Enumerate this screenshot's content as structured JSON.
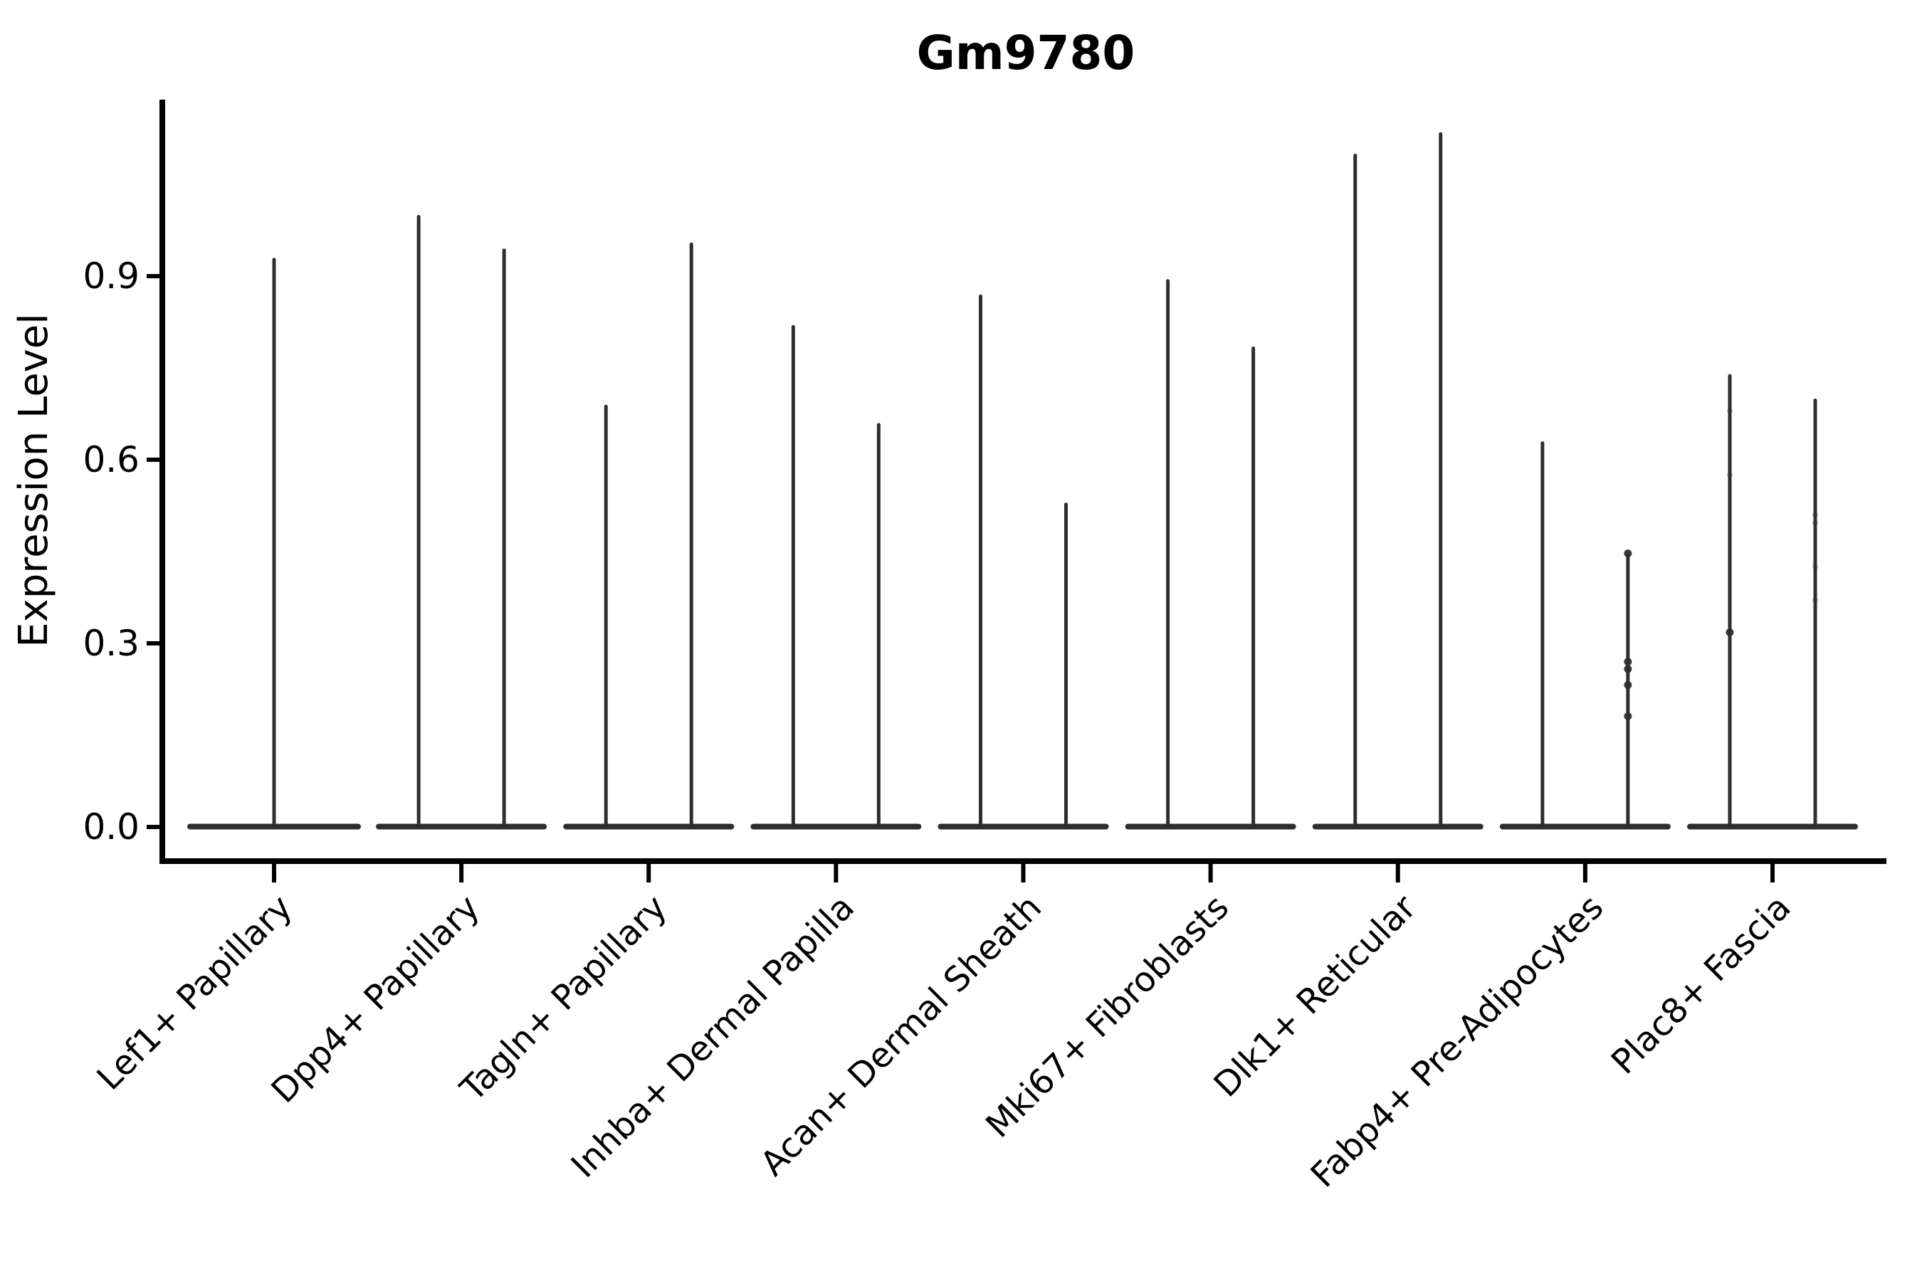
{
  "title": "Gm9780",
  "chart_data": {
    "type": "violin",
    "title": "Gm9780",
    "xlabel": "",
    "ylabel": "Expression Level",
    "ytick_labels": [
      "0.0",
      "0.3",
      "0.6",
      "0.9"
    ],
    "ytick_values": [
      0.0,
      0.3,
      0.6,
      0.9
    ],
    "ylim": [
      -0.056,
      1.19
    ],
    "grid": false,
    "legend": "none",
    "violin_color": "#2e2e2e",
    "axis_color": "#000000",
    "description": "Split violin plot of single-cell expression; each violin collapses to a thin spike from a wide base at 0, spike top = maximum expression in that group.",
    "categories": [
      "Lef1+ Papillary",
      "Dpp4+ Papillary",
      "Tagln+ Papillary",
      "Inhba+ Dermal Papilla",
      "Acan+ Dermal Sheath",
      "Mki67+ Fibroblasts",
      "Dlk1+ Reticular",
      "Fabp4+ Pre-Adipocytes",
      "Plac8+ Fascia"
    ],
    "series": [
      {
        "category": "Lef1+ Papillary",
        "violin_max": [
          0.93
        ]
      },
      {
        "category": "Dpp4+ Papillary",
        "violin_max": [
          1.0,
          0.945
        ]
      },
      {
        "category": "Tagln+ Papillary",
        "violin_max": [
          0.69,
          0.955
        ]
      },
      {
        "category": "Inhba+ Dermal Papilla",
        "violin_max": [
          0.82,
          0.66
        ]
      },
      {
        "category": "Acan+ Dermal Sheath",
        "violin_max": [
          0.87,
          0.53
        ]
      },
      {
        "category": "Mki67+ Fibroblasts",
        "violin_max": [
          0.895,
          0.785
        ]
      },
      {
        "category": "Dlk1+ Reticular",
        "violin_max": [
          1.1,
          1.135
        ]
      },
      {
        "category": "Fabp4+ Pre-Adipocytes",
        "violin_max": [
          0.63,
          0.447
        ]
      },
      {
        "category": "Plac8+ Fascia",
        "violin_max": [
          0.74,
          0.7
        ]
      }
    ],
    "points": [
      {
        "category": 7,
        "violin": 1,
        "value": 0.447,
        "faint": false
      },
      {
        "category": 7,
        "violin": 1,
        "value": 0.27,
        "faint": false
      },
      {
        "category": 7,
        "violin": 1,
        "value": 0.258,
        "faint": false
      },
      {
        "category": 7,
        "violin": 1,
        "value": 0.232,
        "faint": false
      },
      {
        "category": 7,
        "violin": 1,
        "value": 0.181,
        "faint": false
      },
      {
        "category": 8,
        "violin": 0,
        "value": 0.68,
        "faint": true
      },
      {
        "category": 8,
        "violin": 0,
        "value": 0.575,
        "faint": true
      },
      {
        "category": 8,
        "violin": 0,
        "value": 0.318,
        "faint": false
      },
      {
        "category": 8,
        "violin": 1,
        "value": 0.51,
        "faint": true
      },
      {
        "category": 8,
        "violin": 1,
        "value": 0.497,
        "faint": true
      },
      {
        "category": 8,
        "violin": 1,
        "value": 0.425,
        "faint": true
      },
      {
        "category": 8,
        "violin": 1,
        "value": 0.37,
        "faint": true
      }
    ]
  }
}
